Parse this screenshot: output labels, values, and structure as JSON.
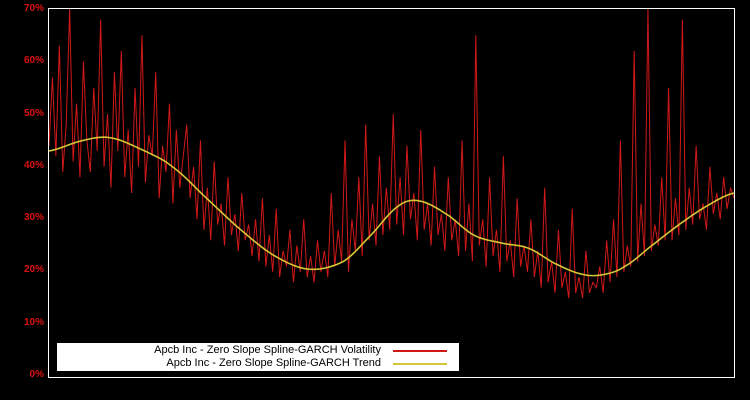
{
  "colors": {
    "background": "#000000",
    "plot_border": "#ffffff",
    "axis_label": "#dd1111",
    "volatility_line": "#d01818",
    "trend_line": "#d4c637",
    "legend_bg": "#ffffff",
    "legend_text": "#000000"
  },
  "chart_data": {
    "type": "line",
    "title": "",
    "xlabel": "",
    "ylabel": "",
    "ylim": [
      0,
      70
    ],
    "grid": false,
    "legend_position": "bottom-left-inside",
    "y_ticks": [
      {
        "value": 0,
        "label": "0%"
      },
      {
        "value": 10,
        "label": "10%"
      },
      {
        "value": 20,
        "label": "20%"
      },
      {
        "value": 30,
        "label": "30%"
      },
      {
        "value": 40,
        "label": "40%"
      },
      {
        "value": 50,
        "label": "50%"
      },
      {
        "value": 60,
        "label": "60%"
      },
      {
        "value": 70,
        "label": "70%"
      }
    ],
    "series": [
      {
        "name": "Apcb Inc - Zero Slope Spline-GARCH Volatility",
        "color": "#d01818",
        "values": [
          44,
          57,
          42,
          63,
          39,
          48,
          70,
          41,
          52,
          38,
          60,
          45,
          39,
          55,
          43,
          68,
          40,
          50,
          36,
          58,
          43,
          62,
          38,
          47,
          35,
          55,
          40,
          65,
          37,
          46,
          42,
          58,
          34,
          44,
          39,
          52,
          33,
          47,
          36,
          42,
          48,
          34,
          40,
          30,
          45,
          28,
          36,
          26,
          41,
          29,
          33,
          25,
          38,
          27,
          31,
          24,
          35,
          26,
          29,
          23,
          30,
          22,
          34,
          21,
          27,
          20,
          32,
          19,
          24,
          21,
          28,
          18,
          25,
          20,
          30,
          19,
          23,
          18,
          26,
          20,
          24,
          19,
          35,
          21,
          28,
          22,
          45,
          20,
          30,
          24,
          38,
          23,
          48,
          26,
          33,
          25,
          42,
          27,
          36,
          28,
          50,
          29,
          38,
          27,
          44,
          30,
          35,
          26,
          47,
          28,
          33,
          25,
          40,
          27,
          31,
          24,
          38,
          26,
          30,
          23,
          45,
          24,
          33,
          22,
          65,
          25,
          30,
          21,
          38,
          23,
          28,
          20,
          42,
          22,
          26,
          19,
          34,
          21,
          25,
          20,
          30,
          19,
          24,
          17,
          36,
          18,
          22,
          16,
          28,
          17,
          20,
          15,
          32,
          16,
          19,
          15,
          24,
          16,
          18,
          17,
          21,
          16,
          26,
          18,
          30,
          19,
          45,
          20,
          25,
          21,
          62,
          22,
          33,
          23,
          70,
          24,
          29,
          25,
          38,
          26,
          55,
          26,
          34,
          27,
          68,
          28,
          36,
          29,
          44,
          30,
          33,
          28,
          40,
          31,
          35,
          30,
          38,
          32,
          36,
          34
        ]
      },
      {
        "name": "Apcb Inc - Zero Slope Spline-GARCH Trend",
        "color": "#d4c637",
        "anchors_t": [
          0,
          0.05,
          0.09,
          0.14,
          0.18,
          0.23,
          0.28,
          0.33,
          0.38,
          0.43,
          0.47,
          0.51,
          0.54,
          0.58,
          0.62,
          0.66,
          0.7,
          0.74,
          0.78,
          0.81,
          0.84,
          0.88,
          0.92,
          0.96,
          1.0
        ],
        "anchors_v": [
          43,
          45,
          45.5,
          43,
          40,
          34,
          28,
          23,
          20.5,
          22,
          27,
          32.5,
          33.5,
          31,
          27,
          25.5,
          24.5,
          21.5,
          19.5,
          19.5,
          21,
          25,
          29,
          32.5,
          35
        ]
      }
    ]
  }
}
